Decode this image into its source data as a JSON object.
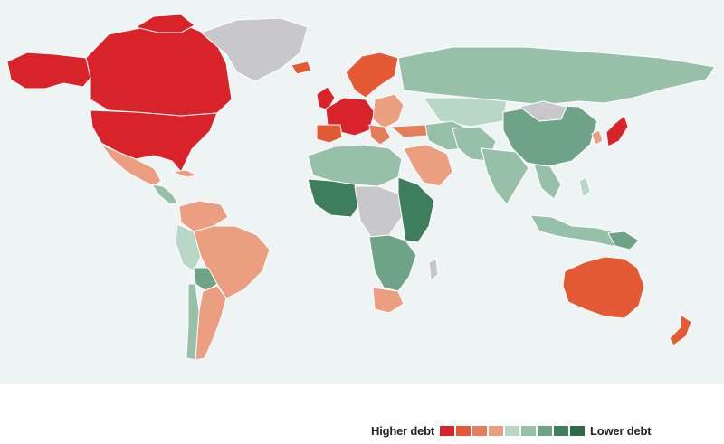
{
  "legend": {
    "higher_label": "Higher debt",
    "lower_label": "Lower debt",
    "scale_colors": [
      "#d9232a",
      "#e45a35",
      "#e57e5c",
      "#ec9e80",
      "#b9d7c7",
      "#97c0a9",
      "#6fa387",
      "#3f7e5c",
      "#2c6a48"
    ]
  },
  "map": {
    "ocean_color": "#eef3f4",
    "no_data_color": "#c8c8ca",
    "border_color": "#ffffff"
  }
}
